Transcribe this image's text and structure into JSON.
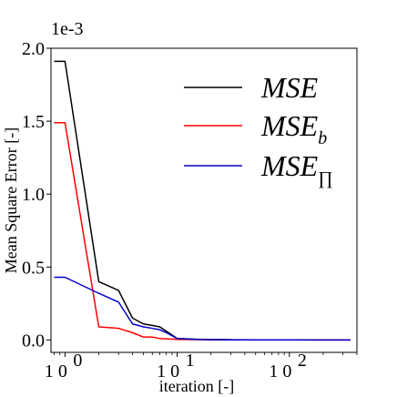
{
  "chart_data": {
    "type": "line",
    "xscale": "log",
    "xlabel": "iteration [-]",
    "ylabel": "Mean Square Error [-]",
    "y_offset_text": "1e-3",
    "xlim": [
      0.75,
      400
    ],
    "ylim": [
      -8.5e-05,
      0.002
    ],
    "yticks": [
      0,
      0.0005,
      0.001,
      0.0015,
      0.002
    ],
    "ytick_labels": [
      "0.0",
      "0.5",
      "1.0",
      "1.5",
      "2.0"
    ],
    "xticks": [
      1,
      10,
      100
    ],
    "xtick_labels": [
      {
        "base": "1 0",
        "exp": "0"
      },
      {
        "base": "1 0",
        "exp": "1"
      },
      {
        "base": "1 0",
        "exp": "2"
      }
    ],
    "legend_position": "upper right",
    "series": [
      {
        "name": "MSE",
        "name_sub": "",
        "color": "#000000",
        "x": [
          0.8,
          1,
          2,
          3,
          4,
          5,
          6,
          7,
          8,
          10,
          15,
          20,
          30,
          50,
          100,
          200,
          350
        ],
        "y": [
          0.00191,
          0.00191,
          0.0004,
          0.00034,
          0.00015,
          0.00011,
          0.0001,
          9e-05,
          6e-05,
          1e-05,
          5e-06,
          3e-06,
          2e-06,
          1e-06,
          1e-06,
          5e-07,
          5e-07
        ]
      },
      {
        "name": "MSE",
        "name_sub": "b",
        "color": "#ff0000",
        "x": [
          0.8,
          1,
          2,
          3,
          4,
          5,
          6,
          7,
          8,
          10,
          15,
          20,
          30,
          50,
          100,
          200,
          350
        ],
        "y": [
          0.00149,
          0.00149,
          9e-05,
          8e-05,
          5e-05,
          2e-05,
          2e-05,
          1e-05,
          8e-06,
          4e-06,
          2e-06,
          1e-06,
          1e-06,
          5e-07,
          5e-07,
          3e-07,
          3e-07
        ]
      },
      {
        "name": "MSE",
        "name_sub": "∏",
        "color": "#0000cc",
        "x": [
          0.8,
          1,
          2,
          3,
          4,
          5,
          6,
          7,
          8,
          10,
          15,
          20,
          30,
          50,
          100,
          200,
          350
        ],
        "y": [
          0.00043,
          0.00043,
          0.00032,
          0.00026,
          0.00011,
          9e-05,
          8e-05,
          7e-05,
          5e-05,
          1e-05,
          4e-06,
          2e-06,
          1e-06,
          5e-07,
          5e-07,
          3e-07,
          3e-07
        ]
      }
    ]
  }
}
